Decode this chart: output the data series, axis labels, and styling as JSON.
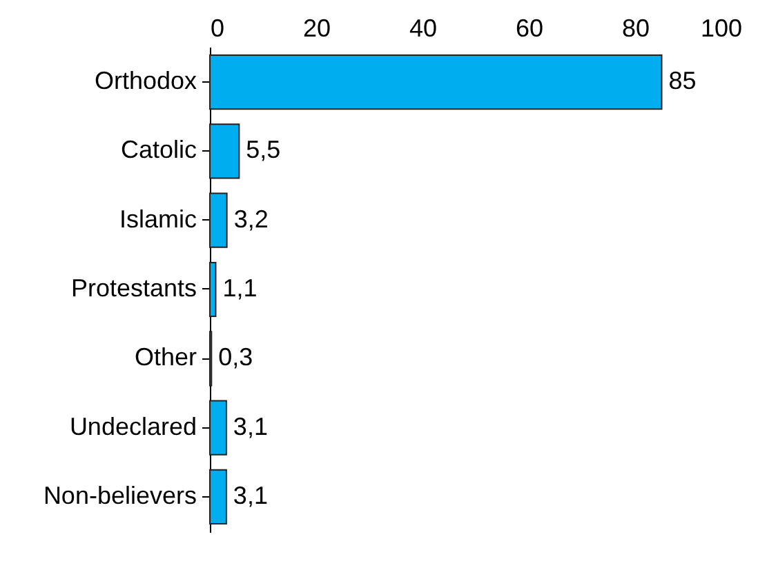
{
  "chart_data": {
    "type": "bar",
    "orientation": "horizontal",
    "categories": [
      "Orthodox",
      "Catolic",
      "Islamic",
      "Protestants",
      "Other",
      "Undeclared",
      "Non-believers"
    ],
    "values": [
      85,
      5.5,
      3.2,
      1.1,
      0.3,
      3.1,
      3.1
    ],
    "value_labels": [
      "85",
      "5,5",
      "3,2",
      "1,1",
      "0,3",
      "3,1",
      "3,1"
    ],
    "color": "#00aeef",
    "xlim": [
      0,
      100
    ],
    "xticks": [
      0,
      20,
      40,
      60,
      80,
      100
    ],
    "grid": false
  }
}
